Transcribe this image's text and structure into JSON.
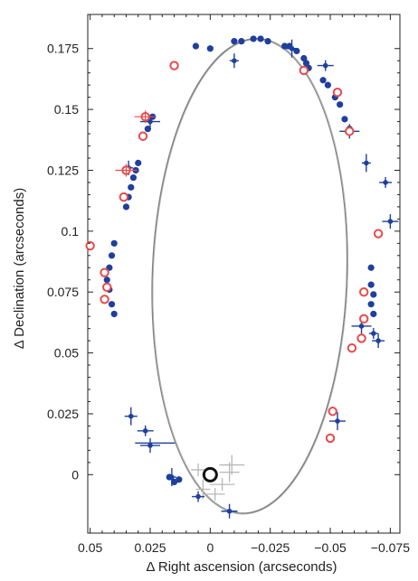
{
  "chart_data": {
    "type": "scatter",
    "title": "",
    "xlabel": "Δ Right ascension (arcseconds)",
    "ylabel": "Δ Declination (arcseconds)",
    "xlim": [
      0.051,
      -0.079
    ],
    "ylim": [
      -0.024,
      0.189
    ],
    "x_reversed": true,
    "grid": false,
    "legend": "none",
    "x_ticks": [
      {
        "value": 0.05,
        "label": "0.05"
      },
      {
        "value": 0.025,
        "label": "0.025"
      },
      {
        "value": 0,
        "label": "0"
      },
      {
        "value": -0.025,
        "label": "−0.025"
      },
      {
        "value": -0.05,
        "label": "−0.05"
      },
      {
        "value": -0.075,
        "label": "−0.075"
      }
    ],
    "y_ticks": [
      {
        "value": 0,
        "label": "0"
      },
      {
        "value": 0.025,
        "label": "0.025"
      },
      {
        "value": 0.05,
        "label": "0.05"
      },
      {
        "value": 0.075,
        "label": "0.075"
      },
      {
        "value": 0.1,
        "label": "0.1"
      },
      {
        "value": 0.125,
        "label": "0.125"
      },
      {
        "value": 0.15,
        "label": "0.15"
      },
      {
        "value": 0.175,
        "label": "0.175"
      }
    ],
    "colors": {
      "orbit": "#808080",
      "blue_points": "#1f3f9e",
      "red_circles": "#e84a4a",
      "central_mass": "#111111",
      "faint_errorbars": "#b8b8b8"
    },
    "orbit_fit": {
      "center_x": -0.0165,
      "center_y": 0.0815,
      "semi_axis_x": 0.0405,
      "semi_axis_y": 0.0975,
      "rotation_deg": 2
    },
    "central_mass": {
      "x": 0.0,
      "y": 0.0
    },
    "series": [
      {
        "marker": "blue-dot",
        "points": [
          {
            "x": -0.01,
            "y": 0.178
          },
          {
            "x": -0.013,
            "y": 0.178
          },
          {
            "x": -0.018,
            "y": 0.179
          },
          {
            "x": -0.021,
            "y": 0.179
          },
          {
            "x": -0.024,
            "y": 0.178
          },
          {
            "x": -0.031,
            "y": 0.176
          },
          {
            "x": -0.033,
            "y": 0.176
          },
          {
            "x": -0.036,
            "y": 0.174
          },
          {
            "x": -0.039,
            "y": 0.171
          },
          {
            "x": -0.04,
            "y": 0.169
          },
          {
            "x": -0.041,
            "y": 0.167
          },
          {
            "x": -0.047,
            "y": 0.162
          },
          {
            "x": -0.049,
            "y": 0.16
          },
          {
            "x": -0.052,
            "y": 0.155
          },
          {
            "x": -0.054,
            "y": 0.152
          },
          {
            "x": -0.056,
            "y": 0.146
          },
          {
            "x": -0.058,
            "y": 0.142
          },
          {
            "x": 0.006,
            "y": 0.176
          },
          {
            "x": 0.0,
            "y": 0.175
          },
          {
            "x": 0.024,
            "y": 0.147
          },
          {
            "x": 0.026,
            "y": 0.142
          },
          {
            "x": 0.03,
            "y": 0.128
          },
          {
            "x": 0.031,
            "y": 0.125
          },
          {
            "x": 0.032,
            "y": 0.122
          },
          {
            "x": 0.033,
            "y": 0.118
          },
          {
            "x": 0.034,
            "y": 0.114
          },
          {
            "x": 0.035,
            "y": 0.11
          },
          {
            "x": 0.04,
            "y": 0.095
          },
          {
            "x": 0.041,
            "y": 0.09
          },
          {
            "x": 0.042,
            "y": 0.085
          },
          {
            "x": 0.043,
            "y": 0.08
          },
          {
            "x": 0.042,
            "y": 0.076
          },
          {
            "x": 0.041,
            "y": 0.07
          },
          {
            "x": 0.04,
            "y": 0.066
          },
          {
            "x": -0.067,
            "y": 0.085
          },
          {
            "x": -0.067,
            "y": 0.078
          },
          {
            "x": -0.068,
            "y": 0.074
          },
          {
            "x": -0.067,
            "y": 0.07
          },
          {
            "x": -0.068,
            "y": 0.066
          },
          {
            "x": 0.017,
            "y": -0.001
          },
          {
            "x": 0.015,
            "y": -0.003
          },
          {
            "x": 0.013,
            "y": -0.002
          }
        ]
      },
      {
        "marker": "blue-cross-errorbar",
        "points": [
          {
            "x": -0.01,
            "y": 0.17
          },
          {
            "x": -0.034,
            "y": 0.175
          },
          {
            "x": -0.048,
            "y": 0.168
          },
          {
            "x": -0.058,
            "y": 0.141
          },
          {
            "x": -0.065,
            "y": 0.128
          },
          {
            "x": -0.073,
            "y": 0.12
          },
          {
            "x": -0.075,
            "y": 0.104
          },
          {
            "x": -0.063,
            "y": 0.061
          },
          {
            "x": -0.068,
            "y": 0.058
          },
          {
            "x": -0.07,
            "y": 0.055
          },
          {
            "x": -0.053,
            "y": 0.022
          },
          {
            "x": 0.025,
            "y": 0.145
          },
          {
            "x": 0.034,
            "y": 0.126
          },
          {
            "x": 0.033,
            "y": 0.024
          },
          {
            "x": 0.027,
            "y": 0.018
          },
          {
            "x": 0.025,
            "y": 0.012
          },
          {
            "x": 0.016,
            "y": -0.001
          },
          {
            "x": 0.005,
            "y": -0.009
          },
          {
            "x": -0.008,
            "y": -0.015
          }
        ]
      },
      {
        "marker": "red-open-circle",
        "points": [
          {
            "x": -0.039,
            "y": 0.166
          },
          {
            "x": -0.053,
            "y": 0.157
          },
          {
            "x": -0.058,
            "y": 0.141
          },
          {
            "x": -0.07,
            "y": 0.099
          },
          {
            "x": -0.064,
            "y": 0.075
          },
          {
            "x": -0.064,
            "y": 0.064
          },
          {
            "x": -0.063,
            "y": 0.056
          },
          {
            "x": -0.059,
            "y": 0.052
          },
          {
            "x": -0.051,
            "y": 0.026
          },
          {
            "x": -0.05,
            "y": 0.015
          },
          {
            "x": 0.015,
            "y": 0.168
          },
          {
            "x": 0.027,
            "y": 0.147
          },
          {
            "x": 0.028,
            "y": 0.139
          },
          {
            "x": 0.035,
            "y": 0.125
          },
          {
            "x": 0.036,
            "y": 0.114
          },
          {
            "x": 0.05,
            "y": 0.094
          },
          {
            "x": 0.044,
            "y": 0.083
          },
          {
            "x": 0.043,
            "y": 0.077
          },
          {
            "x": 0.044,
            "y": 0.072
          }
        ]
      },
      {
        "marker": "grey-cross-errorbar",
        "points": [
          {
            "x": 0.005,
            "y": 0.002
          },
          {
            "x": -0.008,
            "y": 0.001
          },
          {
            "x": -0.005,
            "y": -0.004
          },
          {
            "x": 0.003,
            "y": -0.006
          },
          {
            "x": -0.002,
            "y": -0.008
          },
          {
            "x": -0.009,
            "y": 0.004
          }
        ]
      }
    ]
  }
}
